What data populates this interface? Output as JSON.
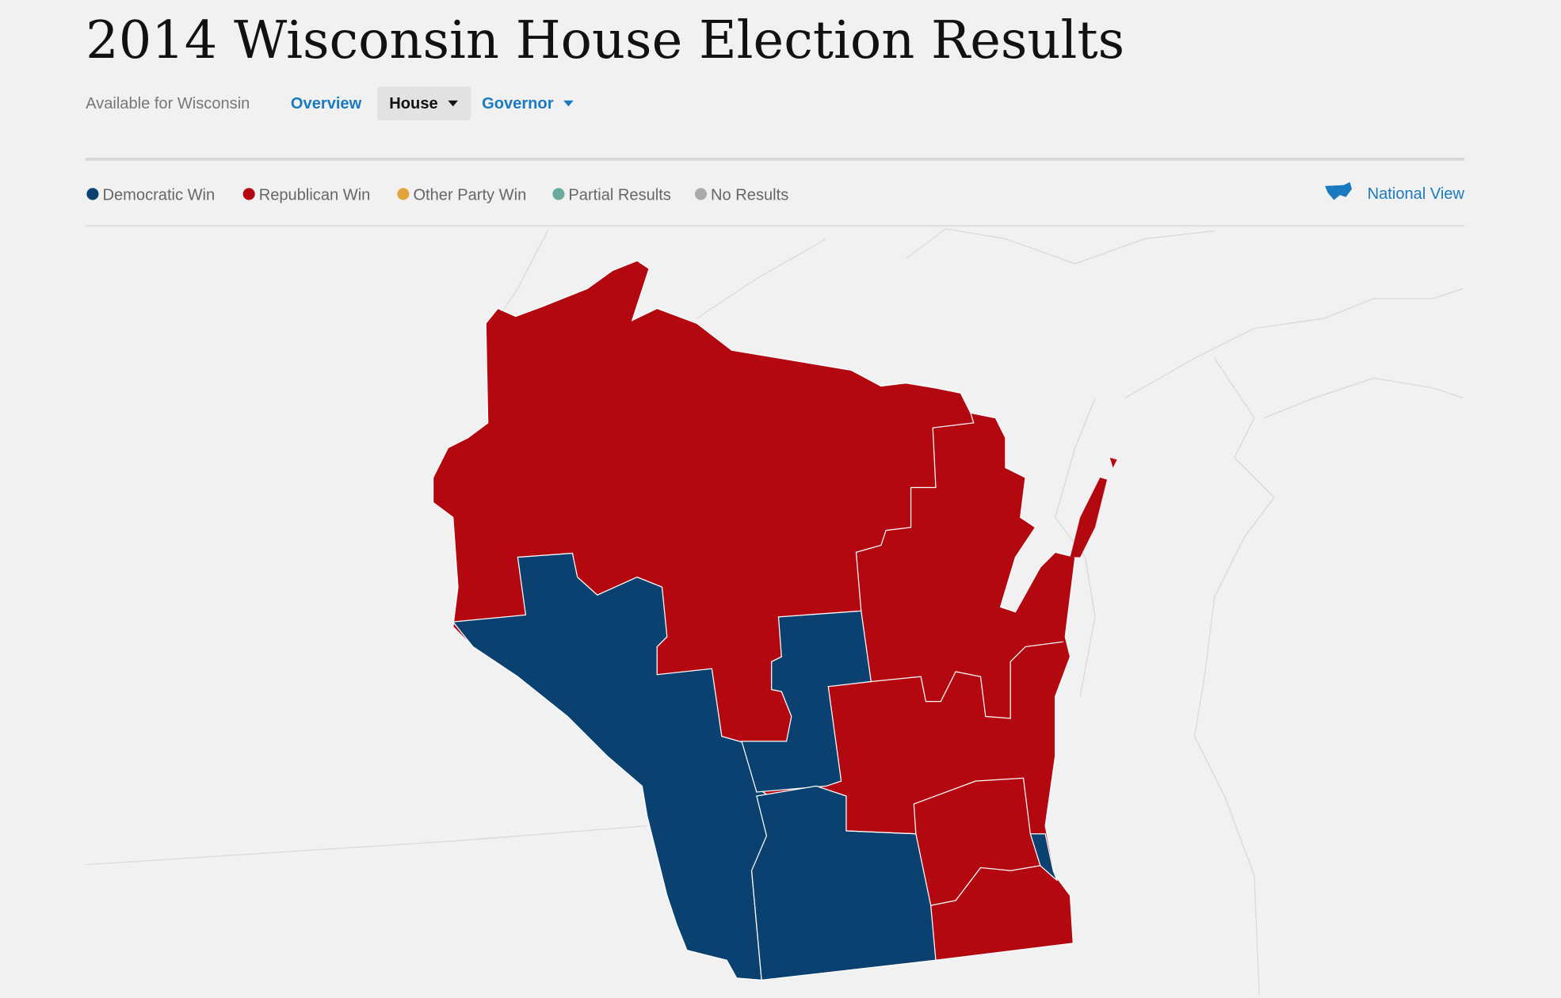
{
  "header": {
    "title": "2014 Wisconsin House Election Results"
  },
  "nav": {
    "label": "Available for Wisconsin",
    "items": [
      "Overview",
      "House",
      "Governor"
    ]
  },
  "legend": [
    "Democratic Win",
    "Republican Win",
    "Other Party Win",
    "Partial Results",
    "No Results"
  ],
  "national_view": "National View"
}
